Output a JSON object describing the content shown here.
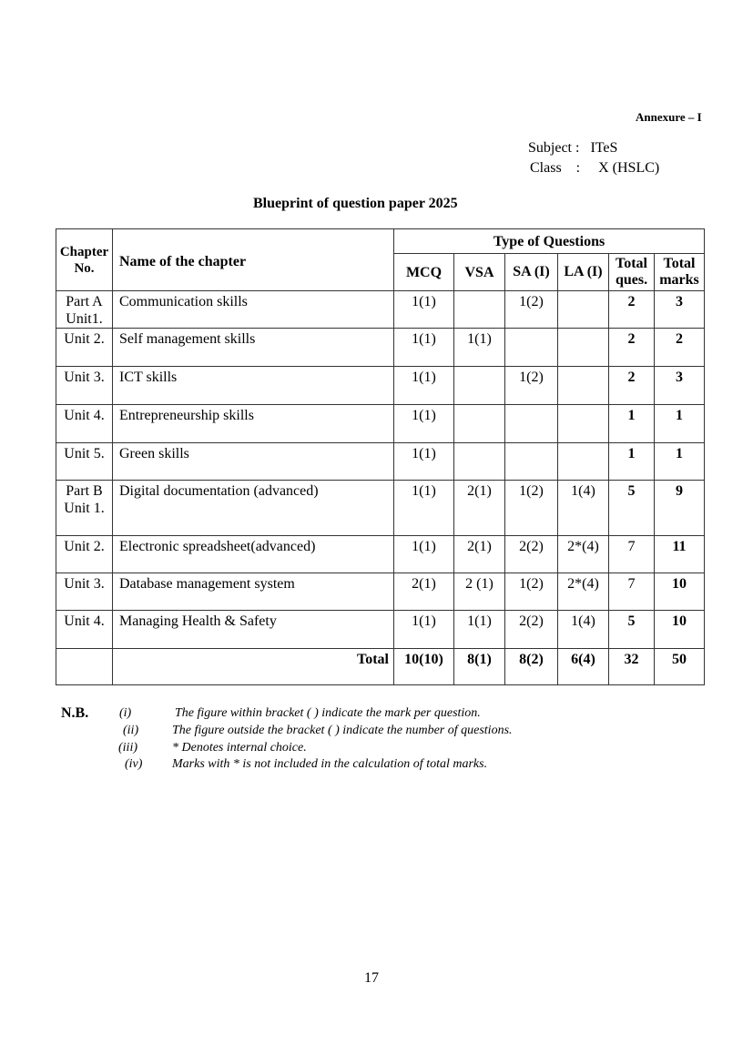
{
  "header": {
    "annexure": "Annexure – I",
    "subject": "Subject :   ITeS",
    "class": "Class    :     X (HSLC)",
    "title": "Blueprint of question paper 2025"
  },
  "table": {
    "headers": {
      "chapter_no": "Chapter No.",
      "name": "Name of the chapter",
      "type_group": "Type of Questions",
      "mcq": "MCQ",
      "vsa": "VSA",
      "sa": "SA (I)",
      "la": "LA (I)",
      "total_ques": "Total ques.",
      "total_marks": "Total marks"
    },
    "rows": [
      {
        "no": "Part A Unit1.",
        "name": "Communication skills",
        "mcq": "1(1)",
        "vsa": "",
        "sa": "1(2)",
        "la": "",
        "tq": "2",
        "tm": "3"
      },
      {
        "no": "Unit 2.",
        "name": "Self management skills",
        "mcq": "1(1)",
        "vsa": "1(1)",
        "sa": "",
        "la": "",
        "tq": "2",
        "tm": "2"
      },
      {
        "no": "Unit 3.",
        "name": "ICT skills",
        "mcq": "1(1)",
        "vsa": "",
        "sa": "1(2)",
        "la": "",
        "tq": "2",
        "tm": "3"
      },
      {
        "no": "Unit 4.",
        "name": "Entrepreneurship skills",
        "mcq": "1(1)",
        "vsa": "",
        "sa": "",
        "la": "",
        "tq": "1",
        "tm": "1"
      },
      {
        "no": "Unit 5.",
        "name": "Green skills",
        "mcq": "1(1)",
        "vsa": "",
        "sa": "",
        "la": "",
        "tq": "1",
        "tm": "1"
      },
      {
        "no": "Part B Unit 1.",
        "name": "Digital documentation (advanced)",
        "mcq": "1(1)",
        "vsa": "2(1)",
        "sa": "1(2)",
        "la": "1(4)",
        "tq": "5",
        "tm": "9"
      },
      {
        "no": "Unit 2.",
        "name": "Electronic spreadsheet(advanced)",
        "mcq": "1(1)",
        "vsa": "2(1)",
        "sa": "2(2)",
        "la": "2*(4)",
        "tq": "7",
        "tm": "11"
      },
      {
        "no": "Unit 3.",
        "name": "Database management system",
        "mcq": "2(1)",
        "vsa": "2 (1)",
        "sa": "1(2)",
        "la": "2*(4)",
        "tq": "7",
        "tm": "10"
      },
      {
        "no": "Unit 4.",
        "name": "Managing Health & Safety",
        "mcq": "1(1)",
        "vsa": "1(1)",
        "sa": "2(2)",
        "la": "1(4)",
        "tq": "5",
        "tm": "10"
      }
    ],
    "total": {
      "label": "Total",
      "mcq": "10(10)",
      "vsa": "8(1)",
      "sa": "8(2)",
      "la": "6(4)",
      "tq": "32",
      "tm": "50"
    }
  },
  "notes": {
    "label": "N.B.",
    "items": [
      {
        "num": "(i)",
        "text": "The figure within bracket ( ) indicate the mark per question."
      },
      {
        "num": "(ii)",
        "text": "The figure outside the bracket ( ) indicate the number of questions."
      },
      {
        "num": "(iii)",
        "text": "* Denotes internal choice."
      },
      {
        "num": "(iv)",
        "text": "Marks with * is not included in the calculation of total marks."
      }
    ]
  },
  "page_number": "17"
}
